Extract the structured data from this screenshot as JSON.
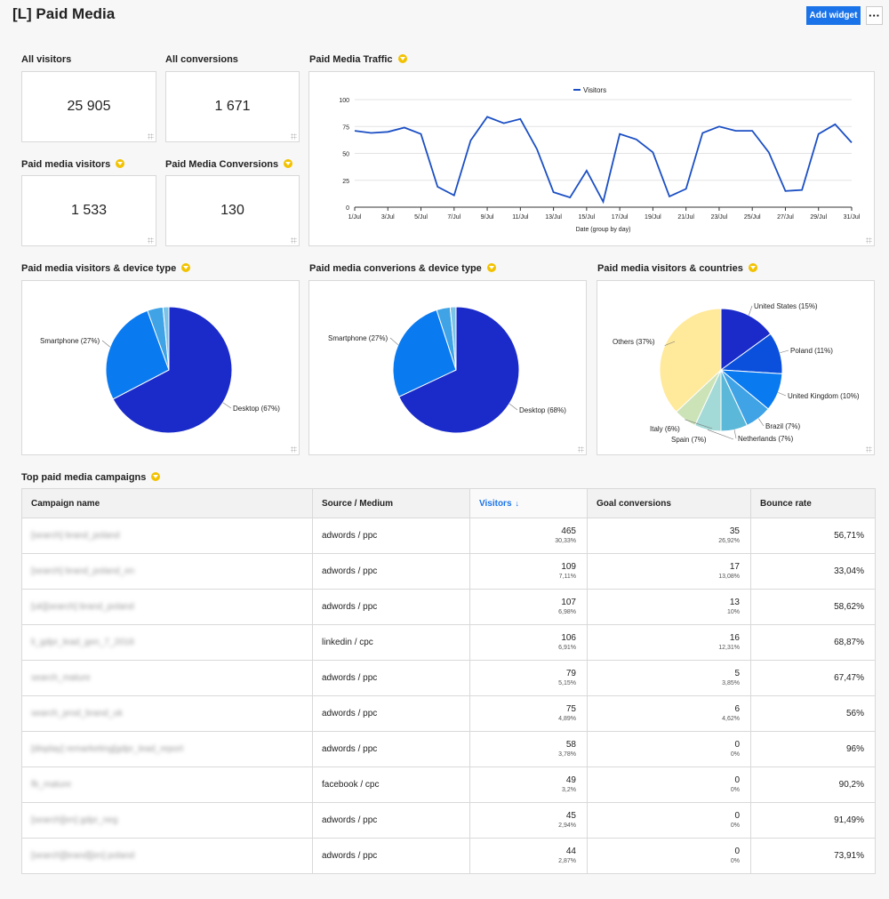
{
  "header": {
    "title": "[L] Paid Media",
    "add_widget_label": "Add widget",
    "more_label": "···"
  },
  "colors": {
    "accent": "#1a73e8",
    "filter_badge": "#f2c200",
    "line": "#1b4fc4"
  },
  "kpis": [
    {
      "title": "All visitors",
      "value": "25 905",
      "filter": false
    },
    {
      "title": "All conversions",
      "value": "1 671",
      "filter": false
    },
    {
      "title": "Paid media visitors",
      "value": "1 533",
      "filter": true
    },
    {
      "title": "Paid Media Conversions",
      "value": "130",
      "filter": true
    }
  ],
  "traffic": {
    "title": "Paid Media Traffic",
    "chart_data": {
      "type": "line",
      "legend": "Visitors",
      "legend_position": "top",
      "xlabel": "Date (group by day)",
      "ylabel": "",
      "ylim": [
        0,
        100
      ],
      "yticks": [
        0,
        25,
        50,
        75,
        100
      ],
      "x": [
        "1/Jul",
        "2/Jul",
        "3/Jul",
        "4/Jul",
        "5/Jul",
        "6/Jul",
        "7/Jul",
        "8/Jul",
        "9/Jul",
        "10/Jul",
        "11/Jul",
        "12/Jul",
        "13/Jul",
        "14/Jul",
        "15/Jul",
        "16/Jul",
        "17/Jul",
        "18/Jul",
        "19/Jul",
        "20/Jul",
        "21/Jul",
        "22/Jul",
        "23/Jul",
        "24/Jul",
        "25/Jul",
        "26/Jul",
        "27/Jul",
        "28/Jul",
        "29/Jul",
        "30/Jul",
        "31/Jul"
      ],
      "xtick_labels": [
        "1/Jul",
        "3/Jul",
        "5/Jul",
        "7/Jul",
        "9/Jul",
        "11/Jul",
        "13/Jul",
        "15/Jul",
        "17/Jul",
        "19/Jul",
        "21/Jul",
        "23/Jul",
        "25/Jul",
        "27/Jul",
        "29/Jul",
        "31/Jul"
      ],
      "series": [
        {
          "name": "Visitors",
          "values": [
            71,
            69,
            70,
            74,
            68,
            19,
            11,
            62,
            84,
            78,
            82,
            54,
            14,
            9,
            34,
            5,
            68,
            63,
            51,
            10,
            17,
            69,
            75,
            71,
            71,
            51,
            15,
            16,
            68,
            77,
            60
          ]
        }
      ],
      "grid": true
    }
  },
  "pies": [
    {
      "title": "Paid media visitors & device type",
      "chart_data": {
        "type": "pie",
        "slices": [
          {
            "label": "Desktop (67%)",
            "value": 67,
            "color": "#1a2bc9"
          },
          {
            "label": "Smartphone (27%)",
            "value": 27,
            "color": "#0a7af0"
          },
          {
            "label": "",
            "value": 4,
            "color": "#3fa3e6"
          },
          {
            "label": "",
            "value": 1.5,
            "color": "#7cc3e8"
          }
        ]
      }
    },
    {
      "title": "Paid media converions & device type",
      "chart_data": {
        "type": "pie",
        "slices": [
          {
            "label": "Desktop (68%)",
            "value": 68,
            "color": "#1a2bc9"
          },
          {
            "label": "Smartphone (27%)",
            "value": 27,
            "color": "#0a7af0"
          },
          {
            "label": "",
            "value": 3.5,
            "color": "#3fa3e6"
          },
          {
            "label": "",
            "value": 1.5,
            "color": "#7cc3e8"
          }
        ]
      }
    },
    {
      "title": "Paid media visitors & countries",
      "chart_data": {
        "type": "pie",
        "slices": [
          {
            "label": "United States (15%)",
            "value": 15,
            "color": "#1a2bc9"
          },
          {
            "label": "Poland (11%)",
            "value": 11,
            "color": "#0a50dc"
          },
          {
            "label": "United Kingdom (10%)",
            "value": 10,
            "color": "#0a7af0"
          },
          {
            "label": "Brazil (7%)",
            "value": 7,
            "color": "#3fa3e6"
          },
          {
            "label": "Netherlands (7%)",
            "value": 7,
            "color": "#5bb8d8"
          },
          {
            "label": "Spain (7%)",
            "value": 7,
            "color": "#a3d9d6"
          },
          {
            "label": "Italy (6%)",
            "value": 6,
            "color": "#cce3b8"
          },
          {
            "label": "Others (37%)",
            "value": 37,
            "color": "#ffe99a"
          }
        ]
      }
    }
  ],
  "campaigns": {
    "title": "Top paid media campaigns",
    "columns": [
      "Campaign name",
      "Source / Medium",
      "Visitors",
      "Goal conversions",
      "Bounce rate"
    ],
    "sorted_column": 2,
    "rows": [
      {
        "name": "[search] brand_poland",
        "source": "adwords / ppc",
        "visitors": "465",
        "visitors_pct": "30,33%",
        "conv": "35",
        "conv_pct": "26,92%",
        "bounce": "56,71%"
      },
      {
        "name": "[search] brand_poland_en",
        "source": "adwords / ppc",
        "visitors": "109",
        "visitors_pct": "7,11%",
        "conv": "17",
        "conv_pct": "13,08%",
        "bounce": "33,04%"
      },
      {
        "name": "[uk][search] brand_poland",
        "source": "adwords / ppc",
        "visitors": "107",
        "visitors_pct": "6,98%",
        "conv": "13",
        "conv_pct": "10%",
        "bounce": "58,62%"
      },
      {
        "name": "li_gdpr_lead_gen_7_2018",
        "source": "linkedin / cpc",
        "visitors": "106",
        "visitors_pct": "6,91%",
        "conv": "16",
        "conv_pct": "12,31%",
        "bounce": "68,87%"
      },
      {
        "name": "search_mature",
        "source": "adwords / ppc",
        "visitors": "79",
        "visitors_pct": "5,15%",
        "conv": "5",
        "conv_pct": "3,85%",
        "bounce": "67,47%"
      },
      {
        "name": "search_prod_brand_uk",
        "source": "adwords / ppc",
        "visitors": "75",
        "visitors_pct": "4,89%",
        "conv": "6",
        "conv_pct": "4,62%",
        "bounce": "56%"
      },
      {
        "name": "[display] remarketing[gdpr_lead_report",
        "source": "adwords / ppc",
        "visitors": "58",
        "visitors_pct": "3,78%",
        "conv": "0",
        "conv_pct": "0%",
        "bounce": "96%"
      },
      {
        "name": "fb_mature",
        "source": "facebook / cpc",
        "visitors": "49",
        "visitors_pct": "3,2%",
        "conv": "0",
        "conv_pct": "0%",
        "bounce": "90,2%"
      },
      {
        "name": "[search][en] gdpr_neg",
        "source": "adwords / ppc",
        "visitors": "45",
        "visitors_pct": "2,94%",
        "conv": "0",
        "conv_pct": "0%",
        "bounce": "91,49%"
      },
      {
        "name": "[search][brand][en] poland",
        "source": "adwords / ppc",
        "visitors": "44",
        "visitors_pct": "2,87%",
        "conv": "0",
        "conv_pct": "0%",
        "bounce": "73,91%"
      }
    ]
  }
}
